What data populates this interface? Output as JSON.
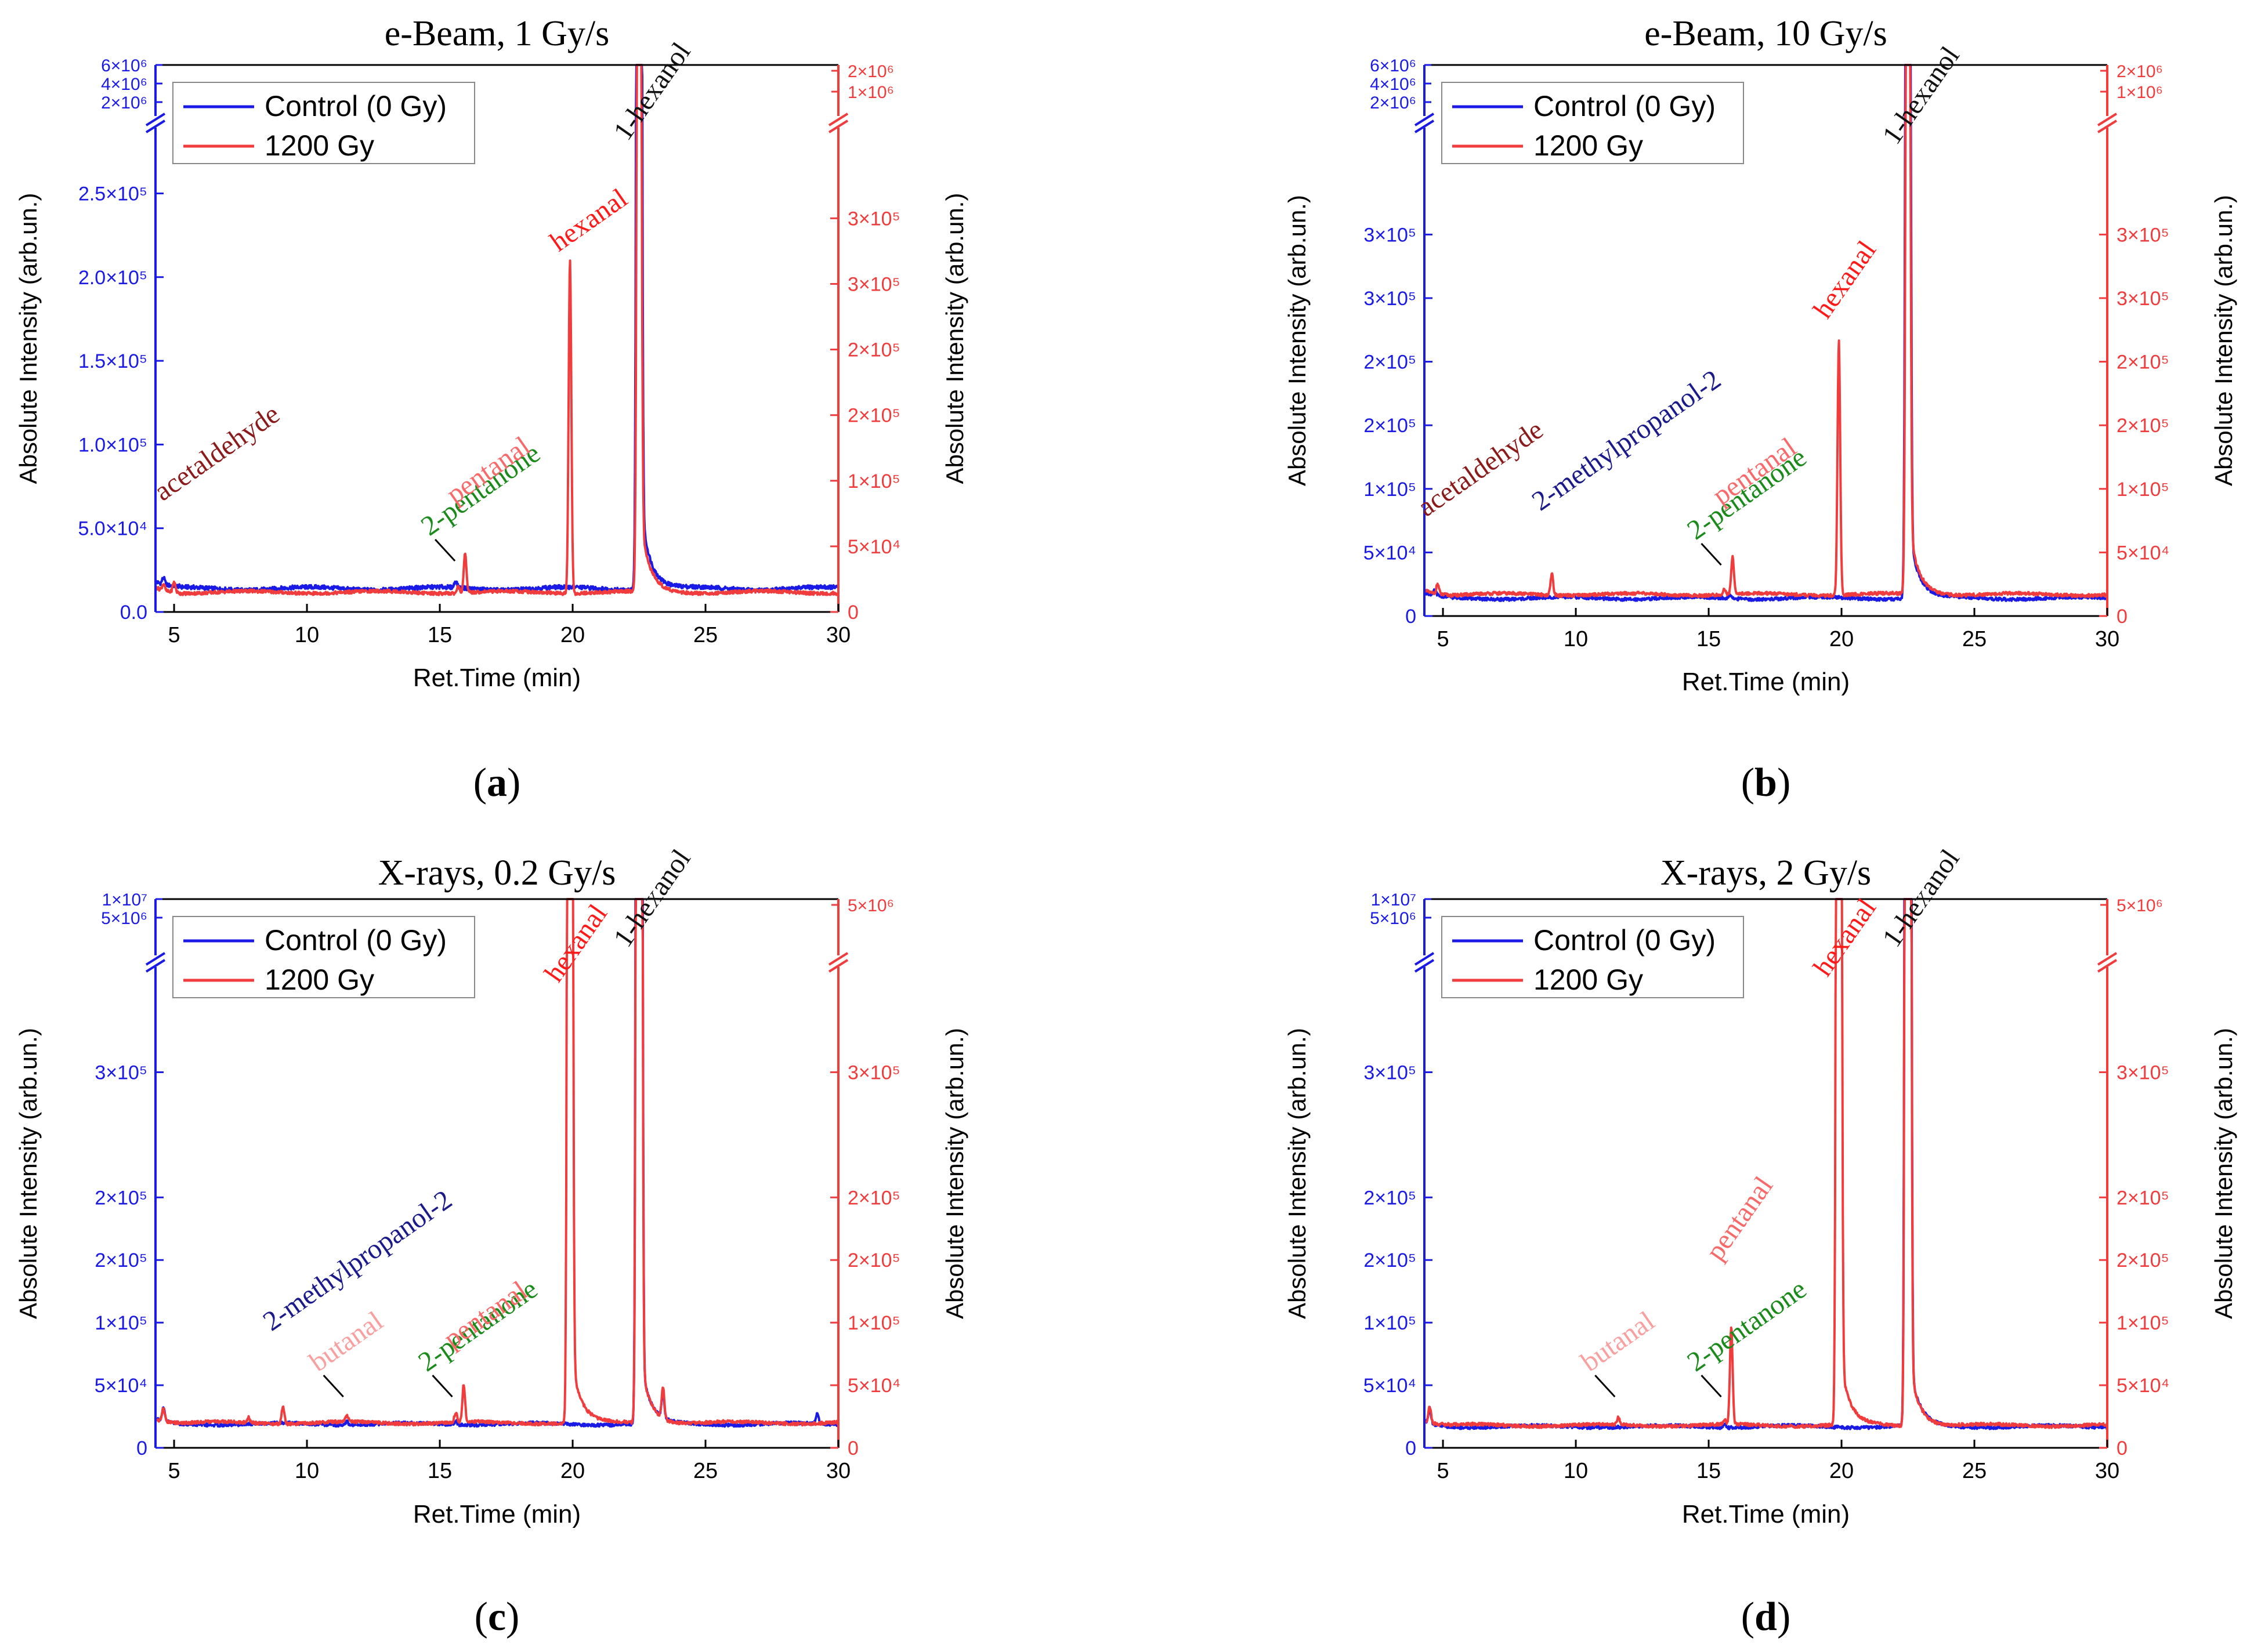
{
  "figure": {
    "panels": [
      {
        "title": "e-Beam, 1 Gy/s",
        "caption_letter": "a",
        "xlabel": "Ret.Time (min)",
        "ylabel_left": "Absolute Intensity (arb.un.)",
        "ylabel_right": "Absolute Intensity (arb.un.)"
      },
      {
        "title": "e-Beam, 10 Gy/s",
        "caption_letter": "b",
        "xlabel": "Ret.Time (min)",
        "ylabel_left": "Absolute Intensity (arb.un.)",
        "ylabel_right": "Absolute Intensity (arb.un.)"
      },
      {
        "title": "X-rays, 0.2 Gy/s",
        "caption_letter": "c",
        "xlabel": "Ret.Time (min)",
        "ylabel_left": "Absolute Intensity (arb.un.)",
        "ylabel_right": "Absolute Intensity (arb.un.)"
      },
      {
        "title": "X-rays, 2 Gy/s",
        "caption_letter": "d",
        "xlabel": "Ret.Time (min)",
        "ylabel_left": "Absolute Intensity (arb.un.)",
        "ylabel_right": "Absolute Intensity (arb.un.)"
      }
    ]
  },
  "colors": {
    "control": "#1a1ae6",
    "irradiated": "#f03c3c",
    "acetaldehyde": "#8b1a1a",
    "hexanal": "#ff1a1a",
    "pentanal": "#f86a6a",
    "butanal": "#f8a0a0",
    "two_pentanone": "#1a8a1a",
    "methylpropanol": "#1a1a8a",
    "hexanol": "#111111"
  },
  "chart_data": [
    {
      "type": "line",
      "title": "e-Beam, 1 Gy/s",
      "xlabel": "Ret.Time (min)",
      "ylabel": "Absolute Intensity (arb.un.)",
      "xlim": [
        4.3,
        30
      ],
      "x_ticks": [
        "5",
        "10",
        "15",
        "20",
        "25",
        "30"
      ],
      "left_ylim": [
        0,
        290000
      ],
      "left_ticks": [
        "0.0",
        "5.0×10⁴",
        "1.0×10⁵",
        "1.5×10⁵",
        "2.0×10⁵",
        "2.5×10⁵"
      ],
      "left_break_ticks": [
        "6×10⁶",
        "4×10⁶",
        "2×10⁶"
      ],
      "right_ylim": [
        0,
        370000
      ],
      "right_ticks": [
        "0",
        "5×10⁴",
        "1×10⁵",
        "2×10⁵",
        "2×10⁵",
        "3×10⁵",
        "3×10⁵"
      ],
      "right_break_ticks": [
        "2×10⁶",
        "1×10⁶"
      ],
      "legend_position": "top-left",
      "legend": [
        "Control (0 Gy)",
        "1200 Gy"
      ],
      "series": [
        {
          "name": "Control (0 Gy)",
          "baseline": 14000,
          "peaks": [
            [
              4.6,
              4000
            ],
            [
              15.6,
              4000
            ],
            [
              22.5,
              2000000
            ]
          ]
        },
        {
          "name": "1200 Gy",
          "baseline": 15000,
          "peaks": [
            [
              4.6,
              5000
            ],
            [
              5.0,
              8000
            ],
            [
              15.7,
              5000
            ],
            [
              15.95,
              30000
            ],
            [
              19.9,
              255000
            ],
            [
              22.5,
              1200000
            ]
          ]
        }
      ],
      "annotations": [
        {
          "text": "acetaldehyde",
          "x": 5.0,
          "color_key": "acetaldehyde"
        },
        {
          "text": "2-pentanone",
          "x": 15.7,
          "color_key": "two_pentanone"
        },
        {
          "text": "pentanal",
          "x": 16.0,
          "color_key": "pentanal"
        },
        {
          "text": "hexanal",
          "x": 19.9,
          "color_key": "hexanal"
        },
        {
          "text": "1-hexanol",
          "x": 22.5,
          "color_key": "hexanol"
        }
      ]
    },
    {
      "type": "line",
      "title": "e-Beam, 10 Gy/s",
      "xlabel": "Ret.Time (min)",
      "ylabel": "Absolute Intensity (arb.un.)",
      "xlim": [
        4.3,
        30
      ],
      "x_ticks": [
        "5",
        "10",
        "15",
        "20",
        "25",
        "30"
      ],
      "left_ylim": [
        0,
        385000
      ],
      "left_ticks": [
        "0",
        "5×10⁴",
        "1×10⁵",
        "2×10⁵",
        "2×10⁵",
        "3×10⁵",
        "3×10⁵"
      ],
      "left_break_ticks": [
        "6×10⁶",
        "4×10⁶",
        "2×10⁶"
      ],
      "right_ylim": [
        0,
        385000
      ],
      "right_ticks": [
        "0",
        "5×10⁴",
        "1×10⁵",
        "2×10⁵",
        "2×10⁵",
        "3×10⁵",
        "3×10⁵"
      ],
      "right_break_ticks": [
        "2×10⁶",
        "1×10⁶"
      ],
      "legend_position": "top-left",
      "legend": [
        "Control (0 Gy)",
        "1200 Gy"
      ],
      "series": [
        {
          "name": "Control (0 Gy)",
          "baseline": 14000,
          "peaks": [
            [
              4.7,
              4000
            ],
            [
              15.8,
              3000
            ],
            [
              22.5,
              2000000
            ]
          ]
        },
        {
          "name": "1200 Gy",
          "baseline": 17000,
          "peaks": [
            [
              4.8,
              8000
            ],
            [
              9.1,
              17000
            ],
            [
              15.6,
              4000
            ],
            [
              15.9,
              30000
            ],
            [
              19.9,
              200000
            ],
            [
              22.5,
              1200000
            ]
          ]
        }
      ],
      "annotations": [
        {
          "text": "acetaldehyde",
          "x": 4.8,
          "color_key": "acetaldehyde"
        },
        {
          "text": "2-methylpropanol-2",
          "x": 9.1,
          "color_key": "methylpropanol"
        },
        {
          "text": "2-pentanone",
          "x": 15.6,
          "color_key": "two_pentanone"
        },
        {
          "text": "pentanal",
          "x": 15.9,
          "color_key": "pentanal"
        },
        {
          "text": "hexanal",
          "x": 19.9,
          "color_key": "hexanal"
        },
        {
          "text": "1-hexanol",
          "x": 22.5,
          "color_key": "hexanol"
        }
      ]
    },
    {
      "type": "line",
      "title": "X-rays, 0.2 Gy/s",
      "xlabel": "Ret.Time (min)",
      "ylabel": "Absolute Intensity (arb.un.)",
      "xlim": [
        4.3,
        30
      ],
      "x_ticks": [
        "5",
        "10",
        "15",
        "20",
        "25",
        "30"
      ],
      "left_ylim": [
        0,
        385000
      ],
      "left_ticks": [
        "0",
        "5×10⁴",
        "1×10⁵",
        "2×10⁵",
        "2×10⁵",
        "3×10⁵"
      ],
      "left_break_ticks": [
        "1×10⁷",
        "5×10⁶"
      ],
      "right_ylim": [
        0,
        385000
      ],
      "right_ticks": [
        "0",
        "5×10⁴",
        "1×10⁵",
        "2×10⁵",
        "2×10⁵",
        "3×10⁵"
      ],
      "right_break_ticks": [
        "5×10⁶"
      ],
      "legend_position": "top-left",
      "legend": [
        "Control (0 Gy)",
        "1200 Gy"
      ],
      "series": [
        {
          "name": "Control (0 Gy)",
          "baseline": 19000,
          "peaks": [
            [
              4.6,
              10000
            ],
            [
              11.5,
              3000
            ],
            [
              15.6,
              3000
            ],
            [
              22.5,
              6000000
            ],
            [
              23.4,
              20000
            ],
            [
              29.2,
              8000
            ]
          ]
        },
        {
          "name": "1200 Gy",
          "baseline": 20000,
          "peaks": [
            [
              4.6,
              11000
            ],
            [
              7.8,
              4000
            ],
            [
              9.1,
              14000
            ],
            [
              11.5,
              5000
            ],
            [
              15.6,
              8000
            ],
            [
              15.9,
              30000
            ],
            [
              19.9,
              3000000
            ],
            [
              22.5,
              5000000
            ],
            [
              23.4,
              25000
            ]
          ]
        }
      ],
      "annotations": [
        {
          "text": "2-methylpropanol-2",
          "x": 9.1,
          "color_key": "methylpropanol"
        },
        {
          "text": "butanal",
          "x": 11.5,
          "color_key": "butanal"
        },
        {
          "text": "2-pentanone",
          "x": 15.6,
          "color_key": "two_pentanone"
        },
        {
          "text": "pentanal",
          "x": 15.9,
          "color_key": "pentanal"
        },
        {
          "text": "hexanal",
          "x": 19.9,
          "color_key": "hexanal"
        },
        {
          "text": "1-hexanol",
          "x": 22.5,
          "color_key": "hexanol"
        }
      ]
    },
    {
      "type": "line",
      "title": "X-rays, 2 Gy/s",
      "xlabel": "Ret.Time (min)",
      "ylabel": "Absolute Intensity (arb.un.)",
      "xlim": [
        4.3,
        30
      ],
      "x_ticks": [
        "5",
        "10",
        "15",
        "20",
        "25",
        "30"
      ],
      "left_ylim": [
        0,
        385000
      ],
      "left_ticks": [
        "0",
        "5×10⁴",
        "1×10⁵",
        "2×10⁵",
        "2×10⁵",
        "3×10⁵"
      ],
      "left_break_ticks": [
        "1×10⁷",
        "5×10⁶"
      ],
      "right_ylim": [
        0,
        385000
      ],
      "right_ticks": [
        "0",
        "5×10⁴",
        "1×10⁵",
        "2×10⁵",
        "2×10⁵",
        "3×10⁵"
      ],
      "right_break_ticks": [
        "5×10⁶"
      ],
      "legend_position": "top-left",
      "legend": [
        "Control (0 Gy)",
        "1200 Gy"
      ],
      "series": [
        {
          "name": "Control (0 Gy)",
          "baseline": 17000,
          "peaks": [
            [
              4.5,
              12000
            ],
            [
              15.6,
              3000
            ],
            [
              22.5,
              6000000
            ]
          ]
        },
        {
          "name": "1200 Gy",
          "baseline": 18000,
          "peaks": [
            [
              4.5,
              13000
            ],
            [
              11.6,
              6000
            ],
            [
              15.6,
              4000
            ],
            [
              15.85,
              78000
            ],
            [
              19.9,
              3000000
            ],
            [
              22.5,
              5000000
            ]
          ]
        }
      ],
      "annotations": [
        {
          "text": "butanal",
          "x": 11.6,
          "color_key": "butanal"
        },
        {
          "text": "2-pentanone",
          "x": 15.6,
          "color_key": "two_pentanone"
        },
        {
          "text": "pentanal",
          "x": 15.85,
          "color_key": "pentanal"
        },
        {
          "text": "hexanal",
          "x": 19.9,
          "color_key": "hexanal"
        },
        {
          "text": "1-hexanol",
          "x": 22.5,
          "color_key": "hexanol"
        }
      ]
    }
  ]
}
